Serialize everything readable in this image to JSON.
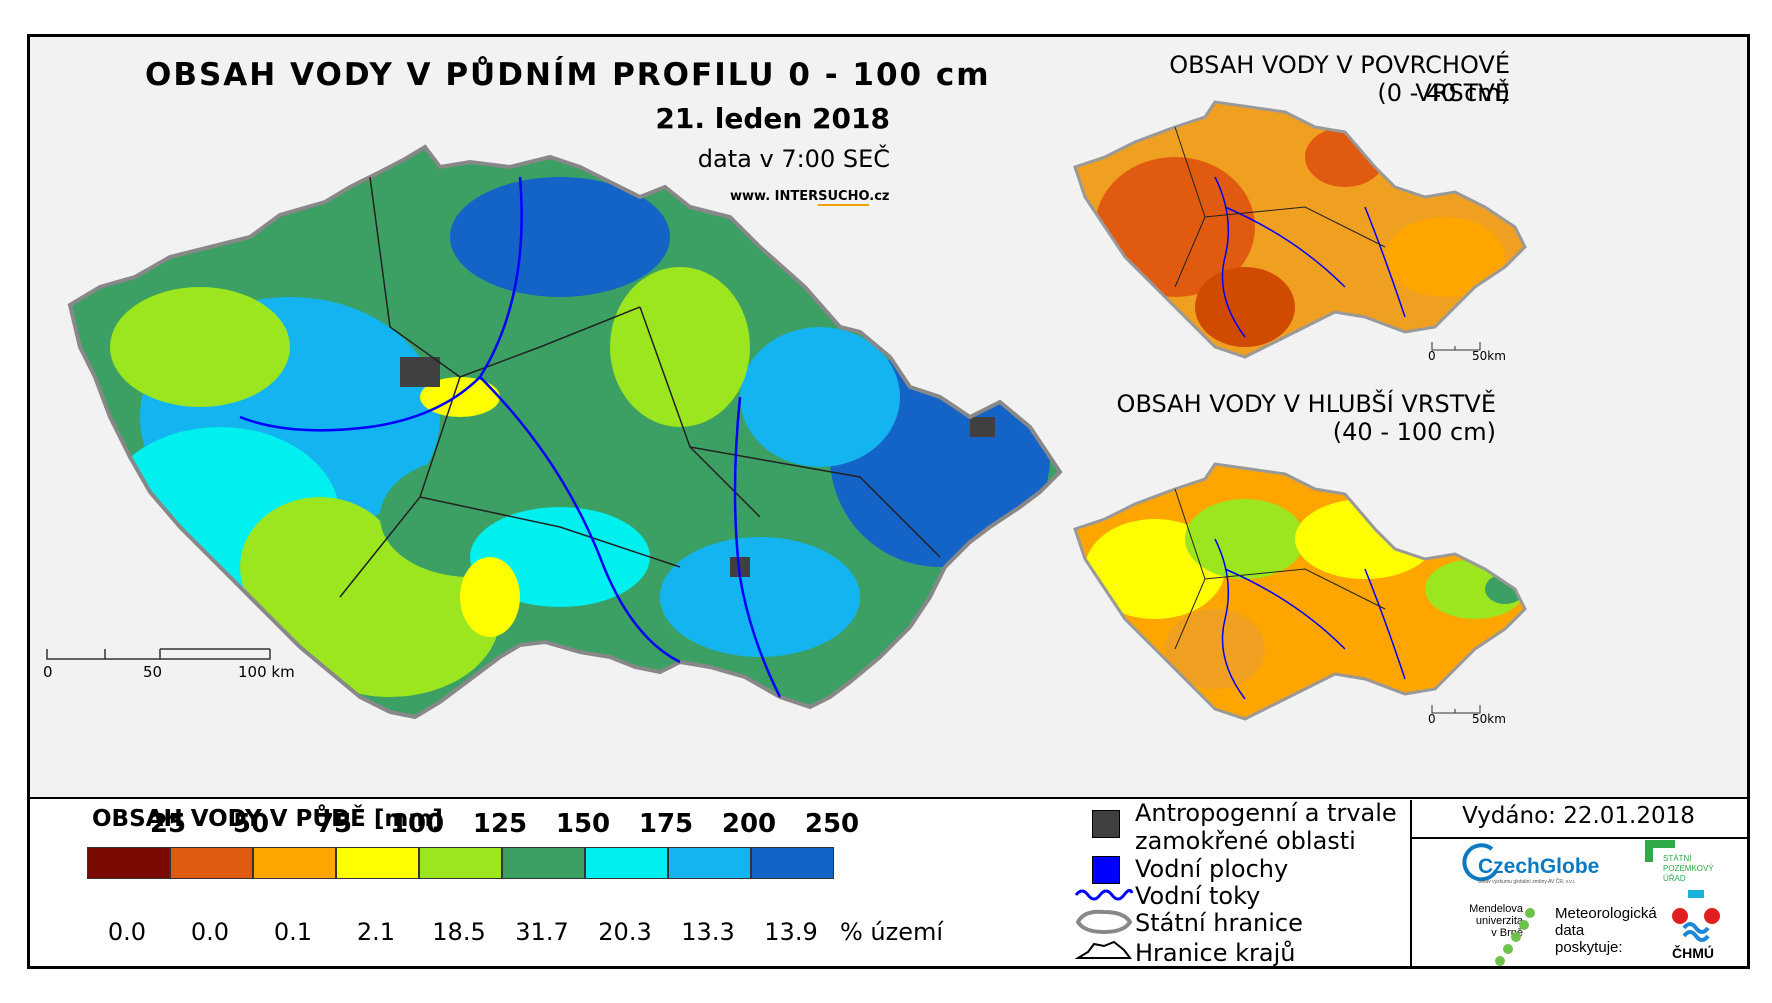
{
  "main_map": {
    "title": "OBSAH VODY V PŮDNÍM PROFILU 0 - 100 cm",
    "date": "21. leden 2018",
    "time": "data v 7:00 SEČ",
    "website_prefix": "www. INTER",
    "website_brand": "SUCHO",
    "website_suffix": ".cz",
    "scale_labels": [
      "0",
      "50",
      "100 km"
    ]
  },
  "inset_top": {
    "title_line1": "OBSAH VODY V POVRCHOVÉ VRSTVĚ",
    "title_line2": "(0 - 40 cm)",
    "scale_labels": [
      "0",
      "50km"
    ]
  },
  "inset_bottom": {
    "title_line1": "OBSAH VODY V HLUBŠÍ VRSTVĚ",
    "title_line2": "(40 - 100 cm)",
    "scale_labels": [
      "0",
      "50km"
    ]
  },
  "legend": {
    "title": "OBSAH VODY V PŮDĚ [mm]",
    "levels": [
      "25",
      "50",
      "75",
      "100",
      "125",
      "150",
      "175",
      "200",
      "250"
    ],
    "colors": [
      "#7a0a00",
      "#e05a10",
      "#ffa500",
      "#ffff00",
      "#9be61e",
      "#3ca064",
      "#00f0f0",
      "#14b4f0",
      "#1464c8"
    ],
    "percents": [
      "0.0",
      "0.0",
      "0.1",
      "2.1",
      "18.5",
      "31.7",
      "20.3",
      "13.3",
      "13.9"
    ],
    "percent_unit": "% území"
  },
  "symbols": {
    "anthropogenic_line1": "Antropogenní a trvale",
    "anthropogenic_line2": "zamokřené oblasti",
    "water_bodies": "Vodní plochy",
    "rivers": "Vodní toky",
    "state_border": "Státní hranice",
    "region_border": "Hranice krajů"
  },
  "issued": "Vydáno: 22.01.2018",
  "logos": {
    "czechglobe": "CzechGlobe",
    "czechglobe_sub": "Ústav výzkumu globální změny AV ČR, v.v.i.",
    "spu_line1": "STÁTNÍ",
    "spu_line2": "POZEMKOVÝ",
    "spu_line3": "ÚŘAD",
    "mendel_line1": "Mendelova",
    "mendel_line2": "univerzita",
    "mendel_line3": "v Brně",
    "meteo_line1": "Meteorologická",
    "meteo_line2": "data",
    "meteo_line3": "poskytuje:",
    "chmu": "ČHMÚ"
  },
  "colors": {
    "anthropogenic": "#404040",
    "water": "#0000ff",
    "river": "#0000ff",
    "background": "#f2f2f2"
  }
}
